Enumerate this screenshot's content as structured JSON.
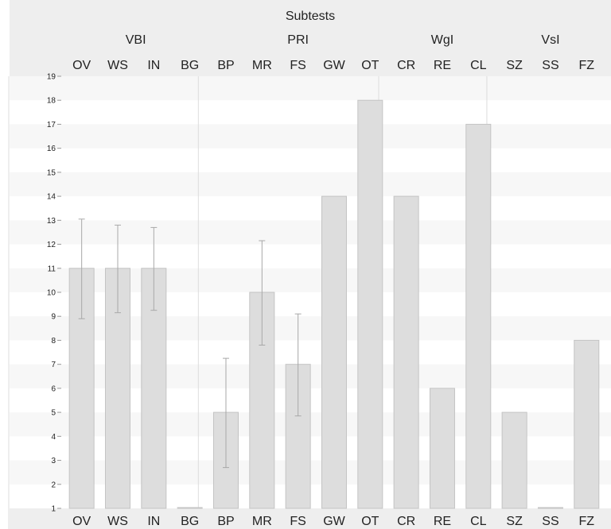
{
  "chart_data": {
    "type": "bar",
    "title": "Subtests",
    "groups": [
      {
        "label": "VBI",
        "categories": [
          "OV",
          "WS",
          "IN",
          "BG"
        ]
      },
      {
        "label": "PRI",
        "categories": [
          "BP",
          "MR",
          "FS",
          "GW",
          "OT"
        ]
      },
      {
        "label": "WgI",
        "categories": [
          "CR",
          "RE",
          "CL"
        ]
      },
      {
        "label": "VsI",
        "categories": [
          "SZ",
          "SS",
          "FZ"
        ]
      }
    ],
    "categories": [
      "OV",
      "WS",
      "IN",
      "BG",
      "BP",
      "MR",
      "FS",
      "GW",
      "OT",
      "CR",
      "RE",
      "CL",
      "SZ",
      "SS",
      "FZ"
    ],
    "values": [
      11,
      11,
      11,
      1,
      5,
      10,
      7,
      14,
      18,
      14,
      6,
      17,
      5,
      1,
      8
    ],
    "error_bars": [
      {
        "category": "OV",
        "low": 8.9,
        "high": 13.05
      },
      {
        "category": "WS",
        "low": 9.15,
        "high": 12.8
      },
      {
        "category": "IN",
        "low": 9.25,
        "high": 12.7
      },
      {
        "category": "BP",
        "low": 2.7,
        "high": 7.25
      },
      {
        "category": "MR",
        "low": 7.8,
        "high": 12.15
      },
      {
        "category": "FS",
        "low": 4.85,
        "high": 9.1
      }
    ],
    "yticks": [
      1,
      2,
      3,
      4,
      5,
      6,
      7,
      8,
      9,
      10,
      11,
      12,
      13,
      14,
      15,
      16,
      17,
      18,
      19
    ],
    "ylim": [
      1,
      19
    ],
    "grid": "alternating bands",
    "colors": {
      "bar_fill": "#dddddd",
      "bar_stroke": "#c4c4c4",
      "header_bg": "#eeeeee",
      "band": "#f7f7f7",
      "error_bar": "#a8a8a8",
      "text": "#222222"
    }
  }
}
